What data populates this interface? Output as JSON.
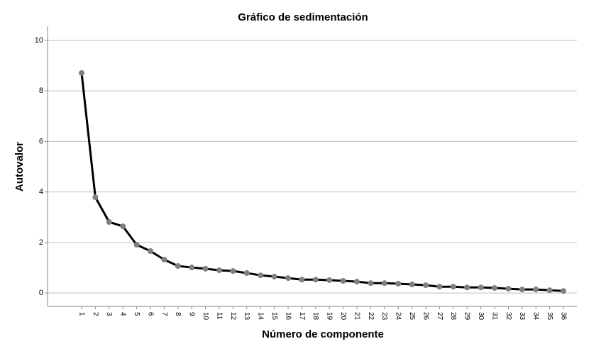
{
  "chart_data": {
    "type": "line",
    "title": "Gráfico de sedimentación",
    "x_label": "Número de componente",
    "y_label": "Autovalor",
    "categories": [
      "1",
      "2",
      "3",
      "4",
      "5",
      "6",
      "7",
      "8",
      "9",
      "10",
      "11",
      "12",
      "13",
      "14",
      "15",
      "16",
      "17",
      "18",
      "19",
      "20",
      "21",
      "22",
      "23",
      "24",
      "25",
      "26",
      "27",
      "28",
      "29",
      "30",
      "31",
      "32",
      "33",
      "34",
      "35",
      "36"
    ],
    "values": [
      8.71,
      3.79,
      2.81,
      2.64,
      1.91,
      1.66,
      1.32,
      1.07,
      1.01,
      0.96,
      0.9,
      0.87,
      0.79,
      0.7,
      0.65,
      0.59,
      0.53,
      0.53,
      0.51,
      0.48,
      0.45,
      0.39,
      0.39,
      0.37,
      0.34,
      0.31,
      0.25,
      0.25,
      0.22,
      0.22,
      0.2,
      0.17,
      0.14,
      0.14,
      0.11,
      0.08
    ],
    "color": "#000000",
    "marker_color": "#808080",
    "ylim": [
      -0.53,
      10.56
    ],
    "yticks": [
      0,
      2,
      4,
      6,
      8,
      10
    ],
    "grid": true
  }
}
